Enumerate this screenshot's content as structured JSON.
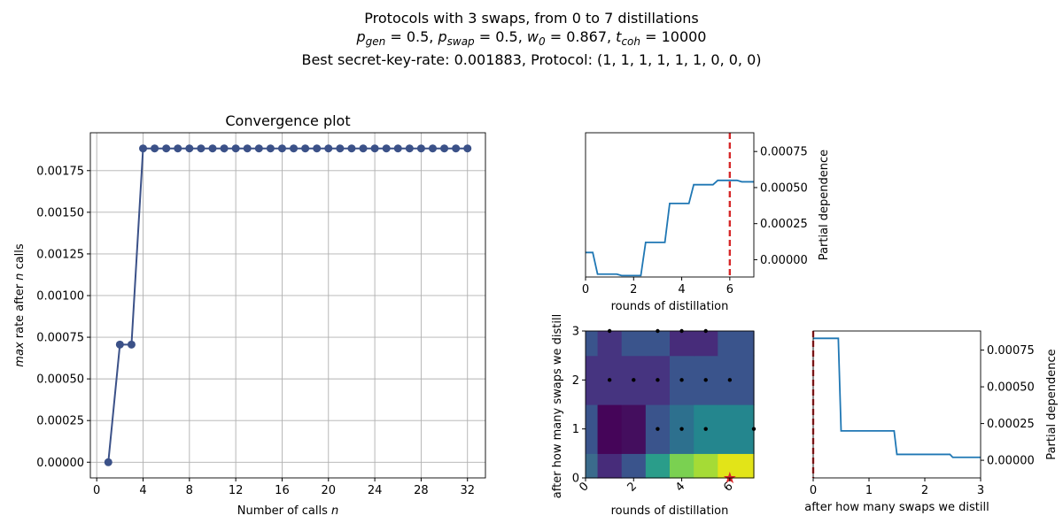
{
  "suptitle": {
    "line1": "Protocols with 3 swaps, from 0 to 7 distillations",
    "line2": "p_gen = 0.5, p_swap = 0.5, w_0 = 0.867, t_coh = 10000",
    "line3": "Best secret-key-rate: 0.001883, Protocol: (1, 1, 1, 1, 1, 1, 0, 0, 0)"
  },
  "colors": {
    "convergence": "#3b5188",
    "pd_line": "#1f77b4",
    "marker": "#d62728"
  },
  "chart_data": [
    {
      "id": "convergence",
      "type": "line",
      "title": "Convergence plot",
      "xlabel": "Number of calls n",
      "ylabel": "max rate after n calls",
      "xlim": [
        -0.55,
        33.55
      ],
      "ylim": [
        -9.42e-05,
        0.0019772
      ],
      "xticks": [
        0,
        4,
        8,
        12,
        16,
        20,
        24,
        28,
        32
      ],
      "yticks": [
        0.0,
        0.00025,
        0.0005,
        0.00075,
        0.001,
        0.00125,
        0.0015,
        0.00175
      ],
      "ytick_labels": [
        "0.00000",
        "0.00025",
        "0.00050",
        "0.00075",
        "0.00100",
        "0.00125",
        "0.00150",
        "0.00175"
      ],
      "grid": true,
      "x": [
        1,
        2,
        3,
        4,
        5,
        6,
        7,
        8,
        9,
        10,
        11,
        12,
        13,
        14,
        15,
        16,
        17,
        18,
        19,
        20,
        21,
        22,
        23,
        24,
        25,
        26,
        27,
        28,
        29,
        30,
        31,
        32
      ],
      "values": [
        0.0,
        0.000706,
        0.000706,
        0.001883,
        0.001883,
        0.001883,
        0.001883,
        0.001883,
        0.001883,
        0.001883,
        0.001883,
        0.001883,
        0.001883,
        0.001883,
        0.001883,
        0.001883,
        0.001883,
        0.001883,
        0.001883,
        0.001883,
        0.001883,
        0.001883,
        0.001883,
        0.001883,
        0.001883,
        0.001883,
        0.001883,
        0.001883,
        0.001883,
        0.001883,
        0.001883,
        0.001883
      ]
    },
    {
      "id": "pd-distill",
      "type": "line",
      "xlabel": "rounds of distillation",
      "ylabel": "Partial dependence",
      "xlim": [
        0,
        7
      ],
      "ylim": [
        -0.00012,
        0.00088
      ],
      "xticks": [
        0,
        2,
        4,
        6
      ],
      "yticks": [
        0.0,
        0.00025,
        0.0005,
        0.00075
      ],
      "ytick_labels": [
        "0.00000",
        "0.00025",
        "0.00050",
        "0.00075"
      ],
      "marker_x": 6,
      "x": [
        0,
        0.3,
        0.5,
        1.3,
        1.5,
        2.3,
        2.5,
        3.3,
        3.5,
        4.3,
        4.5,
        5.3,
        5.5,
        6.3,
        6.5,
        7
      ],
      "values": [
        5e-05,
        5e-05,
        -0.0001,
        -0.0001,
        -0.00011,
        -0.00011,
        0.00012,
        0.00012,
        0.00039,
        0.00039,
        0.00052,
        0.00052,
        0.00055,
        0.00055,
        0.00054,
        0.00054
      ]
    },
    {
      "id": "pd-heatmap",
      "type": "heatmap",
      "xlabel": "rounds of distillation",
      "ylabel": "after how many swaps we distill",
      "xlim": [
        0,
        7
      ],
      "ylim": [
        0,
        3
      ],
      "xticks": [
        0,
        2,
        4,
        6
      ],
      "yticks": [
        0,
        1,
        2,
        3
      ],
      "x_edges": [
        0,
        0.5,
        1.5,
        2.5,
        3.5,
        4.5,
        5.5,
        7
      ],
      "y_edges": [
        0,
        0.5,
        1.5,
        2.5,
        3
      ],
      "cells": [
        [
          "#3b6b8c",
          "#472c7a",
          "#3a548c",
          "#2a9d8a",
          "#7ad151",
          "#a5db36",
          "#e2e418"
        ],
        [
          "#3a548c",
          "#450559",
          "#440e5e",
          "#3a548c",
          "#2d708e",
          "#24868e",
          "#24868e"
        ],
        [
          "#463480",
          "#463480",
          "#463480",
          "#463480",
          "#3a548c",
          "#3a548c",
          "#3a548c"
        ],
        [
          "#3a548c",
          "#463480",
          "#3a548c",
          "#3a548c",
          "#472c7a",
          "#472c7a",
          "#3a548c"
        ]
      ],
      "points": [
        [
          1,
          2
        ],
        [
          2,
          2
        ],
        [
          3,
          2
        ],
        [
          4,
          2
        ],
        [
          5,
          2
        ],
        [
          6,
          2
        ],
        [
          3,
          1
        ],
        [
          4,
          1
        ],
        [
          5,
          1
        ],
        [
          7,
          1
        ],
        [
          1,
          3
        ],
        [
          3,
          3
        ],
        [
          4,
          3
        ],
        [
          5,
          3
        ]
      ],
      "best": [
        6,
        0
      ]
    },
    {
      "id": "pd-swaps",
      "type": "line",
      "xlabel": "after how many swaps we distill",
      "ylabel": "Partial dependence",
      "xlim": [
        0,
        3
      ],
      "ylim": [
        -0.00012,
        0.00088
      ],
      "xticks": [
        0,
        1,
        2,
        3
      ],
      "yticks": [
        0.0,
        0.00025,
        0.0005,
        0.00075
      ],
      "ytick_labels": [
        "0.00000",
        "0.00025",
        "0.00050",
        "0.00075"
      ],
      "marker_x": 0,
      "x": [
        0,
        0.45,
        0.5,
        1.45,
        1.5,
        2.45,
        2.5,
        3
      ],
      "values": [
        0.00083,
        0.00083,
        0.0002,
        0.0002,
        4e-05,
        4e-05,
        2e-05,
        2e-05
      ]
    }
  ]
}
